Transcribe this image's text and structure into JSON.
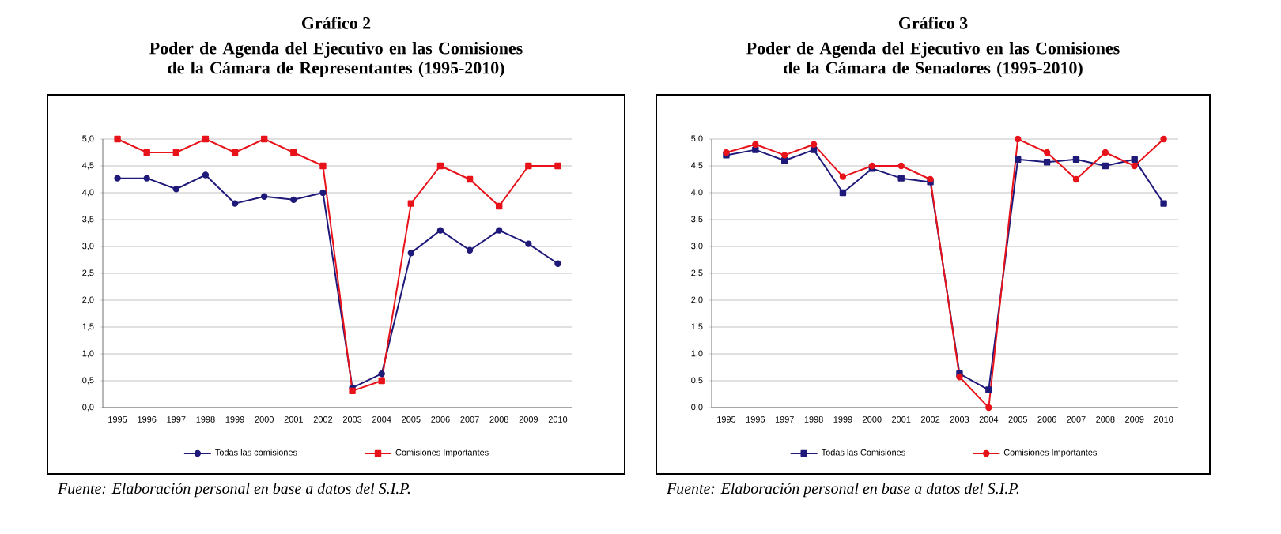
{
  "chart_data": [
    {
      "type": "line",
      "title": "Gráfico 2",
      "subtitle": "Poder de Agenda del Ejecutivo en las Comisiones de la Cámara de Representantes (1995-2010)",
      "categories": [
        "1995",
        "1996",
        "1997",
        "1998",
        "1999",
        "2000",
        "2001",
        "2002",
        "2003",
        "2004",
        "2005",
        "2006",
        "2007",
        "2008",
        "2009",
        "2010"
      ],
      "series": [
        {
          "name": "Todas las comisiones",
          "color": "#1f1a7a",
          "marker": "circle",
          "values": [
            4.27,
            4.27,
            4.07,
            4.33,
            3.8,
            3.93,
            3.87,
            4.0,
            0.37,
            0.63,
            2.88,
            3.3,
            2.93,
            3.3,
            3.05,
            2.68
          ]
        },
        {
          "name": "Comisiones Importantes",
          "color": "#e8131a",
          "marker": "square",
          "values": [
            5.0,
            4.75,
            4.75,
            5.0,
            4.75,
            5.0,
            4.75,
            4.5,
            0.31,
            0.5,
            3.8,
            4.5,
            4.25,
            3.75,
            4.5,
            4.5
          ]
        }
      ],
      "ylim": [
        0,
        5
      ],
      "yticks": [
        {
          "value": 0,
          "label": "0,0"
        },
        {
          "value": 0.5,
          "label": "0,5"
        },
        {
          "value": 1,
          "label": "1,0"
        },
        {
          "value": 1.5,
          "label": "1,5"
        },
        {
          "value": 2,
          "label": "2,0"
        },
        {
          "value": 2.5,
          "label": "2,5"
        },
        {
          "value": 3,
          "label": "3,0"
        },
        {
          "value": 3.5,
          "label": "3,5"
        },
        {
          "value": 4,
          "label": "4,0"
        },
        {
          "value": 4.5,
          "label": "4,5"
        },
        {
          "value": 5,
          "label": "5,0"
        }
      ],
      "grid": "y",
      "legend": "bottom",
      "line_style": "solid",
      "annotations": [
        "Fuente: Elaboración personal en base a datos del S.I.P."
      ]
    },
    {
      "type": "line",
      "title": "Gráfico 3",
      "subtitle": "Poder de Agenda del Ejecutivo en las Comisiones de la Cámara de Senadores (1995-2010)",
      "categories": [
        "1995",
        "1996",
        "1997",
        "1998",
        "1999",
        "2000",
        "2001",
        "2002",
        "2003",
        "2004",
        "2005",
        "2006",
        "2007",
        "2008",
        "2009",
        "2010"
      ],
      "series": [
        {
          "name": "Todas las Comisiones",
          "color": "#1f1a7a",
          "marker": "square",
          "values": [
            4.7,
            4.8,
            4.6,
            4.8,
            4.0,
            4.45,
            4.27,
            4.2,
            0.63,
            0.33,
            4.62,
            4.57,
            4.62,
            4.5,
            4.62,
            3.8
          ]
        },
        {
          "name": "Comisiones Importantes",
          "color": "#e8131a",
          "marker": "circle",
          "values": [
            4.75,
            4.9,
            4.7,
            4.9,
            4.3,
            4.5,
            4.5,
            4.25,
            0.57,
            0.0,
            5.0,
            4.75,
            4.25,
            4.75,
            4.5,
            5.0
          ]
        }
      ],
      "ylim": [
        0,
        5
      ],
      "yticks": [
        {
          "value": 0,
          "label": "0,0"
        },
        {
          "value": 0.5,
          "label": "0,5"
        },
        {
          "value": 1,
          "label": "1,0"
        },
        {
          "value": 1.5,
          "label": "1,5"
        },
        {
          "value": 2,
          "label": "2,0"
        },
        {
          "value": 2.5,
          "label": "2,5"
        },
        {
          "value": 3,
          "label": "3,0"
        },
        {
          "value": 3.5,
          "label": "3,5"
        },
        {
          "value": 4,
          "label": "4,0"
        },
        {
          "value": 4.5,
          "label": "4,5"
        },
        {
          "value": 5,
          "label": "5,0"
        }
      ],
      "grid": "y",
      "legend": "bottom",
      "line_style": "solid",
      "annotations": [
        "Fuente: Elaboración personal en base a datos del S.I.P."
      ]
    }
  ]
}
